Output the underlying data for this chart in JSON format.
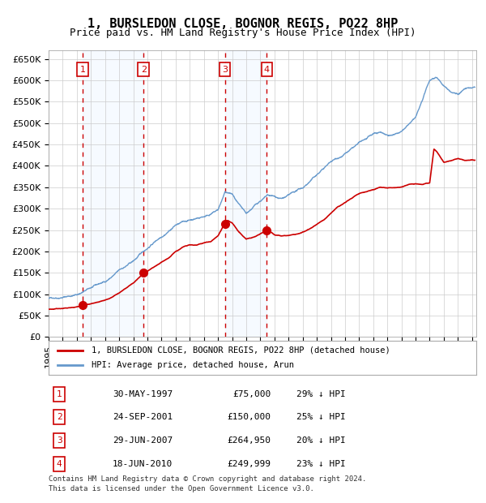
{
  "title": "1, BURSLEDON CLOSE, BOGNOR REGIS, PO22 8HP",
  "subtitle": "Price paid vs. HM Land Registry's House Price Index (HPI)",
  "legend_label_red": "1, BURSLEDON CLOSE, BOGNOR REGIS, PO22 8HP (detached house)",
  "legend_label_blue": "HPI: Average price, detached house, Arun",
  "footer_line1": "Contains HM Land Registry data © Crown copyright and database right 2024.",
  "footer_line2": "This data is licensed under the Open Government Licence v3.0.",
  "transactions": [
    {
      "num": 1,
      "date": "30-MAY-1997",
      "price": 75000,
      "pct": "29% ↓ HPI",
      "year_x": 1997.41
    },
    {
      "num": 2,
      "date": "24-SEP-2001",
      "price": 150000,
      "pct": "25% ↓ HPI",
      "year_x": 2001.73
    },
    {
      "num": 3,
      "date": "29-JUN-2007",
      "price": 264950,
      "pct": "20% ↓ HPI",
      "year_x": 2007.49
    },
    {
      "num": 4,
      "date": "18-JUN-2010",
      "price": 249999,
      "pct": "23% ↓ HPI",
      "year_x": 2010.46
    }
  ],
  "ylim": [
    0,
    670000
  ],
  "yticks": [
    0,
    50000,
    100000,
    150000,
    200000,
    250000,
    300000,
    350000,
    400000,
    450000,
    500000,
    550000,
    600000,
    650000
  ],
  "ytick_labels": [
    "£0",
    "£50K",
    "£100K",
    "£150K",
    "£200K",
    "£250K",
    "£300K",
    "£350K",
    "£400K",
    "£450K",
    "£500K",
    "£550K",
    "£600K",
    "£650K"
  ],
  "xlim_start": 1995.0,
  "xlim_end": 2025.3,
  "red_color": "#cc0000",
  "blue_color": "#6699cc",
  "bg_color": "#ffffff",
  "grid_color": "#cccccc",
  "shade_color": "#ddeeff",
  "title_fontsize": 11,
  "subtitle_fontsize": 9,
  "tick_fontsize": 8
}
